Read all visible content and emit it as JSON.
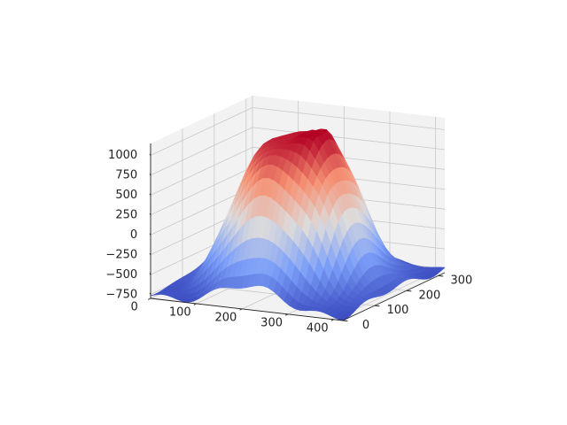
{
  "chart_data": {
    "type": "surface3d",
    "colormap": "coolwarm",
    "title": "",
    "xlabel": "",
    "ylabel": "",
    "zlabel": "",
    "x_ticks": [
      "0",
      "100",
      "200",
      "300",
      "400"
    ],
    "y_ticks": [
      "0",
      "100",
      "200",
      "300"
    ],
    "z_ticks": [
      "−750",
      "−500",
      "−250",
      "0",
      "250",
      "500",
      "750",
      "1000"
    ],
    "xlim": [
      0,
      420
    ],
    "ylim": [
      0,
      320
    ],
    "zlim": [
      -800,
      1150
    ],
    "z_data_range": [
      -800,
      1150
    ],
    "grid": true,
    "pane_color": "#f2f2f2",
    "surface_description": "smooth height field: broad central plateau near 850-1150 with peaks on top, dropping to a ring around -200 to -800 near the edges"
  }
}
